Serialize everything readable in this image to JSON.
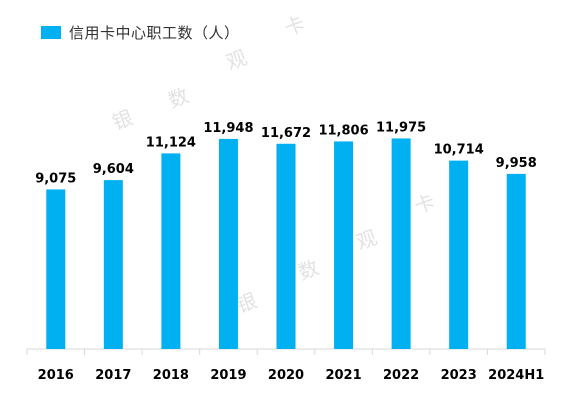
{
  "legend": {
    "label": "信用卡中心职工数（人）",
    "color": "#00B0F0"
  },
  "watermark": [
    "银",
    "数",
    "观",
    "卡",
    "银",
    "数",
    "观",
    "卡"
  ],
  "chart_data": {
    "type": "bar",
    "categories": [
      "2016",
      "2017",
      "2018",
      "2019",
      "2020",
      "2021",
      "2022",
      "2023",
      "2024H1"
    ],
    "series": [
      {
        "name": "信用卡中心职工数（人）",
        "values": [
          9075,
          9604,
          11124,
          11948,
          11672,
          11806,
          11975,
          10714,
          9958
        ]
      }
    ],
    "data_labels": [
      "9,075",
      "9,604",
      "11,124",
      "11,948",
      "11,672",
      "11,806",
      "11,975",
      "10,714",
      "9,958"
    ],
    "ylim": [
      0,
      12000
    ],
    "grid": false,
    "legend_position": "top-left",
    "colors": {
      "bar": "#00B0F0",
      "axis": "#D9D9D9",
      "label": "#000000"
    }
  }
}
